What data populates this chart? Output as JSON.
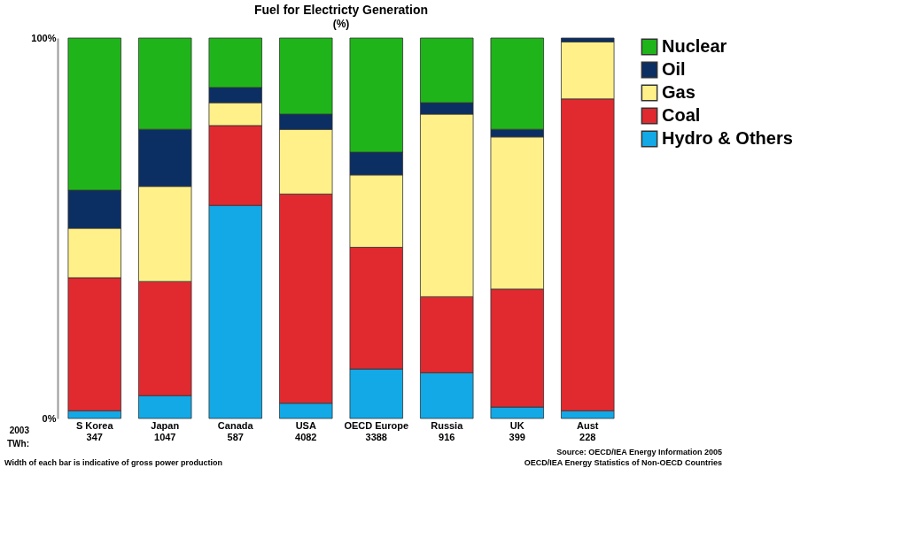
{
  "chart_data": {
    "type": "bar",
    "title": "Fuel for Electricty Generation",
    "subtitle": "(%)",
    "categories": [
      "S Korea\n347",
      "Japan\n1047",
      "Canada\n587",
      "USA\n4082",
      "OECD Europe\n3388",
      "Russia\n916",
      "UK\n399",
      "Aust\n228"
    ],
    "series": [
      {
        "name": "Hydro & Others",
        "color": "#13a9e6",
        "values": [
          2,
          6,
          56,
          4,
          13,
          12,
          3,
          2
        ]
      },
      {
        "name": "Coal",
        "color": "#e02a30",
        "values": [
          35,
          30,
          21,
          55,
          32,
          20,
          31,
          82
        ]
      },
      {
        "name": "Gas",
        "color": "#fff08a",
        "values": [
          13,
          25,
          6,
          17,
          19,
          48,
          40,
          15
        ]
      },
      {
        "name": "Oil",
        "color": "#0b2f63",
        "values": [
          10,
          15,
          4,
          4,
          6,
          3,
          2,
          1
        ]
      },
      {
        "name": "Nuclear",
        "color": "#1fb51a",
        "values": [
          40,
          24,
          13,
          20,
          30,
          17,
          24,
          null
        ]
      }
    ],
    "stacked": true,
    "ylim": [
      0,
      100
    ],
    "yticks": [
      {
        "value": 0,
        "label": "0%"
      },
      {
        "value": 100,
        "label": "100%"
      }
    ],
    "grid": false,
    "legend": "right",
    "annotations": [
      "2003",
      "TWh:",
      "Width of each bar is indicative of gross power production",
      "Source: OECD/IEA Energy Information 2005",
      "OECD/IEA Energy Statistics of Non-OECD Countries"
    ]
  }
}
